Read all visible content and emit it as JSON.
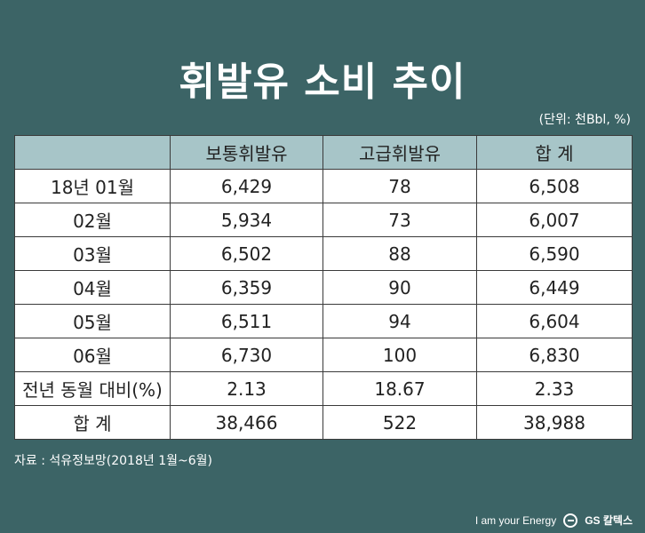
{
  "title": "휘발유 소비 추이",
  "unit_note": "(단위: 천Bbl, %)",
  "table": {
    "headers": [
      "",
      "보통휘발유",
      "고급휘발유",
      "합 계"
    ],
    "rows": [
      [
        "18년 01월",
        "6,429",
        "78",
        "6,508"
      ],
      [
        "02월",
        "5,934",
        "73",
        "6,007"
      ],
      [
        "03월",
        "6,502",
        "88",
        "6,590"
      ],
      [
        "04월",
        "6,359",
        "90",
        "6,449"
      ],
      [
        "05월",
        "6,511",
        "94",
        "6,604"
      ],
      [
        "06월",
        "6,730",
        "100",
        "6,830"
      ],
      [
        "전년 동월 대비(%)",
        "2.13",
        "18.67",
        "2.33"
      ],
      [
        "합 계",
        "38,466",
        "522",
        "38,988"
      ]
    ]
  },
  "source": "자료 : 석유정보망(2018년 1월~6월)",
  "footer": {
    "tagline": "I am your Energy",
    "brand": "GS 칼텍스"
  },
  "colors": {
    "background": "#3c6466",
    "header_fill": "#a7c5c8",
    "cell_fill": "#ffffff"
  }
}
